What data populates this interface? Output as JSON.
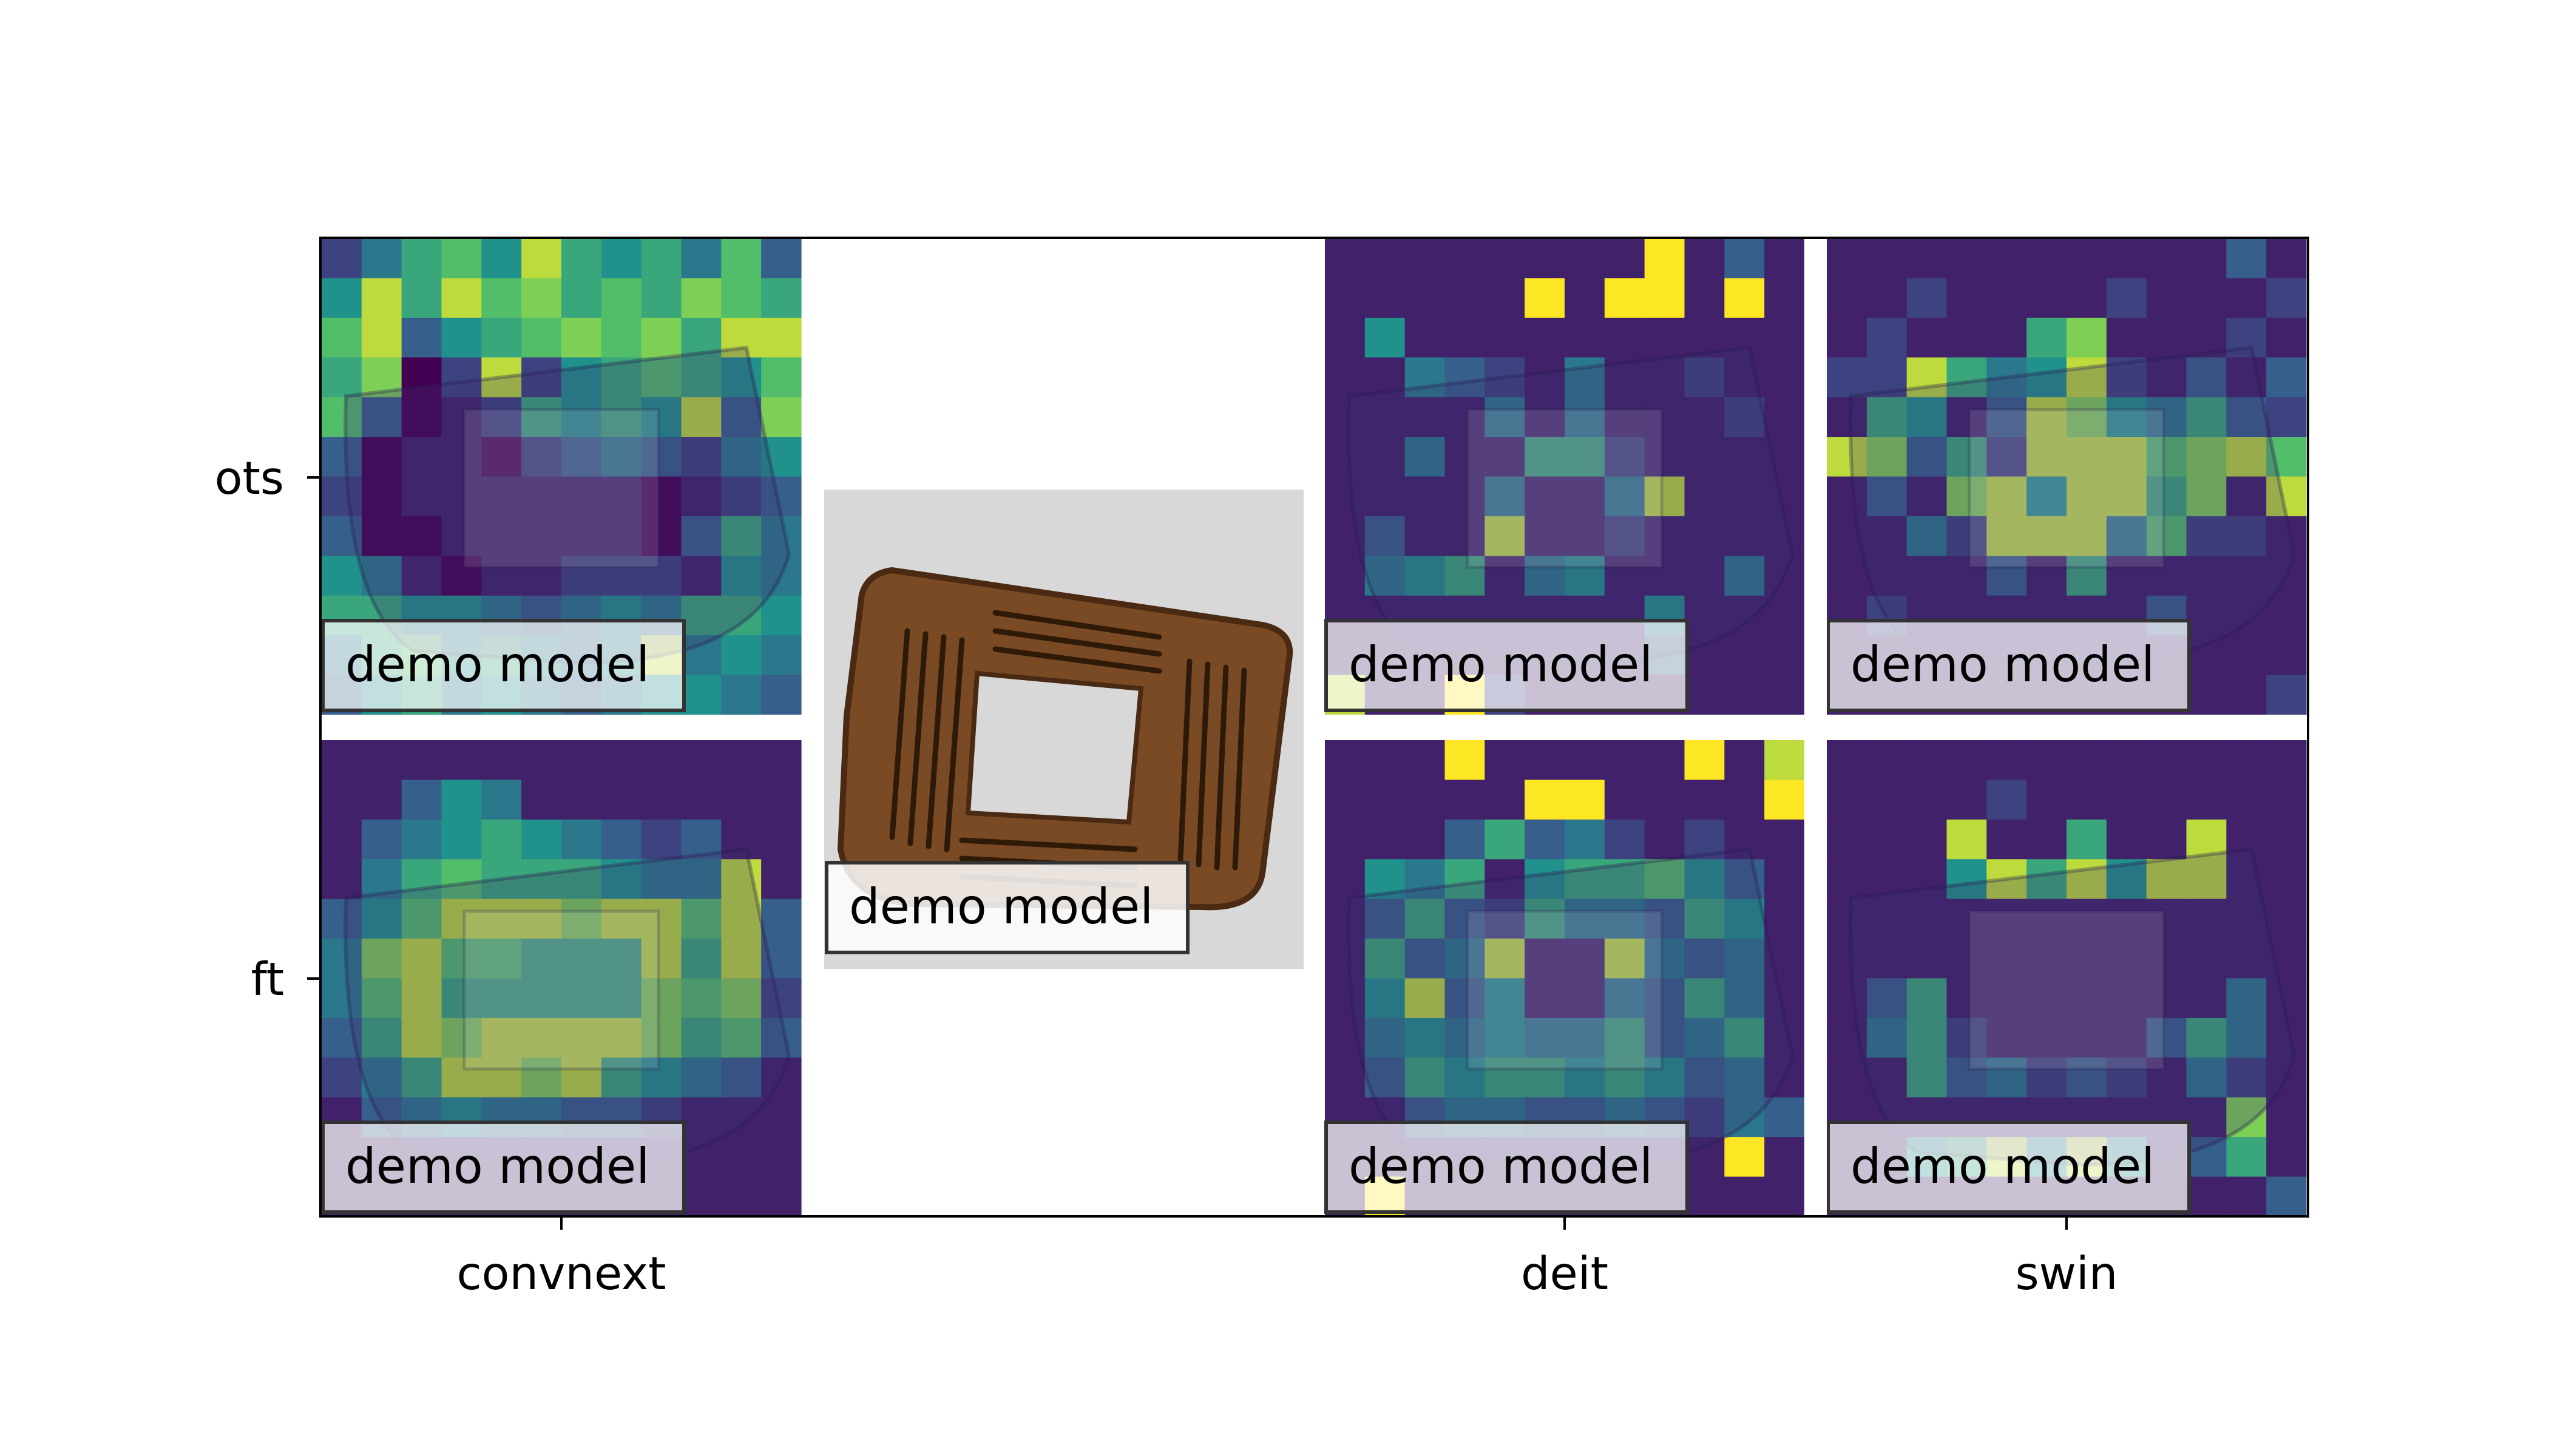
{
  "chart_data": {
    "type": "heatmap",
    "title": "",
    "xlabel": "",
    "ylabel": "",
    "x_tick_labels": [
      "convnext",
      "deit",
      "swin"
    ],
    "y_tick_labels": [
      "ots",
      "ft"
    ],
    "panel_label": "demo model",
    "grid": false,
    "colormap": "viridis",
    "center_image": {
      "label": "demo model",
      "description_colors": {
        "background": "#d8d8d8",
        "frame_wood": "#7a4a24",
        "frame_dark": "#4a2a12"
      }
    },
    "grid_size": [
      12,
      12
    ],
    "panels": [
      {
        "model": "convnext",
        "setting": "ots",
        "label": "demo model",
        "values": [
          [
            0.2,
            0.4,
            0.6,
            0.7,
            0.5,
            0.9,
            0.6,
            0.5,
            0.6,
            0.4,
            0.7,
            0.3
          ],
          [
            0.5,
            0.9,
            0.6,
            0.9,
            0.7,
            0.8,
            0.6,
            0.7,
            0.6,
            0.8,
            0.7,
            0.6
          ],
          [
            0.7,
            0.9,
            0.3,
            0.5,
            0.6,
            0.7,
            0.8,
            0.7,
            0.8,
            0.6,
            0.9,
            0.9
          ],
          [
            0.6,
            0.8,
            0.0,
            0.2,
            0.9,
            0.2,
            0.5,
            0.6,
            0.7,
            0.6,
            0.5,
            0.7
          ],
          [
            0.7,
            0.3,
            0.0,
            0.1,
            0.2,
            0.6,
            0.5,
            0.6,
            0.5,
            0.9,
            0.3,
            0.8
          ],
          [
            0.3,
            0.0,
            0.1,
            0.1,
            0.0,
            0.2,
            0.3,
            0.4,
            0.3,
            0.2,
            0.4,
            0.5
          ],
          [
            0.2,
            0.0,
            0.1,
            0.1,
            0.1,
            0.1,
            0.1,
            0.1,
            0.0,
            0.1,
            0.2,
            0.3
          ],
          [
            0.3,
            0.0,
            0.0,
            0.1,
            0.1,
            0.1,
            0.1,
            0.1,
            0.0,
            0.3,
            0.6,
            0.4
          ],
          [
            0.5,
            0.4,
            0.1,
            0.0,
            0.1,
            0.1,
            0.2,
            0.2,
            0.2,
            0.1,
            0.5,
            0.4
          ],
          [
            0.6,
            0.6,
            0.5,
            0.5,
            0.4,
            0.3,
            0.4,
            0.5,
            0.4,
            0.6,
            0.6,
            0.5
          ],
          [
            0.4,
            0.6,
            0.7,
            0.5,
            0.6,
            0.5,
            0.4,
            0.5,
            0.9,
            0.4,
            0.5,
            0.4
          ],
          [
            0.3,
            0.5,
            0.6,
            0.4,
            0.5,
            0.4,
            0.3,
            0.4,
            0.5,
            0.5,
            0.4,
            0.3
          ]
        ]
      },
      {
        "model": "deit",
        "setting": "ots",
        "label": "demo model",
        "values": [
          [
            0.1,
            0.1,
            0.1,
            0.1,
            0.1,
            0.1,
            0.1,
            0.1,
            1.0,
            0.1,
            0.3,
            0.1
          ],
          [
            0.1,
            0.1,
            0.1,
            0.1,
            0.1,
            1.0,
            0.1,
            1.0,
            1.0,
            0.1,
            1.0,
            0.1
          ],
          [
            0.1,
            0.5,
            0.1,
            0.1,
            0.1,
            0.1,
            0.1,
            0.1,
            0.1,
            0.1,
            0.1,
            0.1
          ],
          [
            0.1,
            0.1,
            0.4,
            0.3,
            0.2,
            0.1,
            0.4,
            0.1,
            0.1,
            0.2,
            0.1,
            0.1
          ],
          [
            0.1,
            0.1,
            0.1,
            0.1,
            0.4,
            0.1,
            0.4,
            0.1,
            0.1,
            0.1,
            0.2,
            0.1
          ],
          [
            0.1,
            0.1,
            0.4,
            0.1,
            0.1,
            0.6,
            0.6,
            0.2,
            0.1,
            0.1,
            0.1,
            0.1
          ],
          [
            0.1,
            0.1,
            0.1,
            0.1,
            0.4,
            0.1,
            0.1,
            0.4,
            0.9,
            0.1,
            0.1,
            0.1
          ],
          [
            0.1,
            0.3,
            0.1,
            0.1,
            0.9,
            0.1,
            0.1,
            0.2,
            0.1,
            0.1,
            0.1,
            0.1
          ],
          [
            0.1,
            0.4,
            0.5,
            0.6,
            0.1,
            0.4,
            0.5,
            0.1,
            0.1,
            0.1,
            0.4,
            0.1
          ],
          [
            0.1,
            0.1,
            0.1,
            0.1,
            0.1,
            0.1,
            0.1,
            0.1,
            0.5,
            0.1,
            0.1,
            0.1
          ],
          [
            0.1,
            0.1,
            0.1,
            0.1,
            0.1,
            0.1,
            0.1,
            0.1,
            0.3,
            0.1,
            0.1,
            0.1
          ],
          [
            0.9,
            0.1,
            0.1,
            1.0,
            0.2,
            0.1,
            0.1,
            0.1,
            0.1,
            0.1,
            0.1,
            0.1
          ]
        ]
      },
      {
        "model": "swin",
        "setting": "ots",
        "label": "demo model",
        "values": [
          [
            0.1,
            0.1,
            0.1,
            0.1,
            0.1,
            0.1,
            0.1,
            0.1,
            0.1,
            0.1,
            0.3,
            0.1
          ],
          [
            0.1,
            0.1,
            0.2,
            0.1,
            0.1,
            0.1,
            0.1,
            0.2,
            0.1,
            0.1,
            0.1,
            0.2
          ],
          [
            0.1,
            0.2,
            0.1,
            0.1,
            0.1,
            0.6,
            0.8,
            0.1,
            0.1,
            0.1,
            0.2,
            0.1
          ],
          [
            0.2,
            0.2,
            0.9,
            0.6,
            0.4,
            0.5,
            0.9,
            0.2,
            0.1,
            0.3,
            0.1,
            0.3
          ],
          [
            0.1,
            0.6,
            0.5,
            0.1,
            0.3,
            0.9,
            0.8,
            0.5,
            0.4,
            0.6,
            0.3,
            0.2
          ],
          [
            0.9,
            0.8,
            0.3,
            0.6,
            0.2,
            0.9,
            0.9,
            0.9,
            0.7,
            0.8,
            0.9,
            0.7
          ],
          [
            0.1,
            0.3,
            0.1,
            0.8,
            0.9,
            0.5,
            0.9,
            0.9,
            0.6,
            0.8,
            0.1,
            0.9
          ],
          [
            0.1,
            0.1,
            0.4,
            0.2,
            0.9,
            0.9,
            0.9,
            0.4,
            0.7,
            0.2,
            0.2,
            0.1
          ],
          [
            0.1,
            0.1,
            0.1,
            0.1,
            0.3,
            0.1,
            0.6,
            0.1,
            0.1,
            0.1,
            0.1,
            0.1
          ],
          [
            0.1,
            0.2,
            0.1,
            0.1,
            0.1,
            0.1,
            0.1,
            0.1,
            0.3,
            0.1,
            0.1,
            0.1
          ],
          [
            0.1,
            0.1,
            0.1,
            0.1,
            0.1,
            0.1,
            0.1,
            0.1,
            0.1,
            0.1,
            0.1,
            0.1
          ],
          [
            0.1,
            0.1,
            0.1,
            0.1,
            0.1,
            0.1,
            0.1,
            0.1,
            0.1,
            0.1,
            0.1,
            0.2
          ]
        ]
      },
      {
        "model": "convnext",
        "setting": "ft",
        "label": "demo model",
        "values": [
          [
            0.1,
            0.1,
            0.1,
            0.1,
            0.1,
            0.1,
            0.1,
            0.1,
            0.1,
            0.1,
            0.1,
            0.1
          ],
          [
            0.1,
            0.1,
            0.3,
            0.5,
            0.4,
            0.1,
            0.1,
            0.1,
            0.1,
            0.1,
            0.1,
            0.1
          ],
          [
            0.1,
            0.3,
            0.4,
            0.5,
            0.6,
            0.5,
            0.4,
            0.3,
            0.2,
            0.3,
            0.1,
            0.1
          ],
          [
            0.1,
            0.4,
            0.6,
            0.7,
            0.6,
            0.6,
            0.6,
            0.5,
            0.4,
            0.4,
            0.9,
            0.1
          ],
          [
            0.3,
            0.5,
            0.7,
            0.9,
            0.9,
            0.9,
            0.8,
            0.9,
            0.9,
            0.7,
            0.9,
            0.3
          ],
          [
            0.4,
            0.8,
            0.9,
            0.7,
            0.7,
            0.6,
            0.6,
            0.6,
            0.9,
            0.6,
            0.9,
            0.3
          ],
          [
            0.4,
            0.7,
            0.9,
            0.6,
            0.6,
            0.6,
            0.6,
            0.6,
            0.8,
            0.7,
            0.8,
            0.2
          ],
          [
            0.3,
            0.6,
            0.9,
            0.8,
            0.9,
            0.9,
            0.9,
            0.9,
            0.8,
            0.6,
            0.7,
            0.3
          ],
          [
            0.2,
            0.4,
            0.6,
            0.9,
            0.9,
            0.8,
            0.9,
            0.6,
            0.5,
            0.4,
            0.3,
            0.1
          ],
          [
            0.1,
            0.3,
            0.4,
            0.5,
            0.4,
            0.4,
            0.3,
            0.3,
            0.2,
            0.1,
            0.1,
            0.1
          ],
          [
            0.1,
            0.1,
            0.1,
            0.1,
            0.1,
            0.1,
            0.1,
            0.1,
            0.1,
            0.1,
            0.1,
            0.1
          ],
          [
            0.1,
            0.1,
            0.1,
            0.1,
            0.1,
            0.1,
            0.1,
            0.1,
            0.1,
            0.1,
            0.1,
            0.1
          ]
        ]
      },
      {
        "model": "deit",
        "setting": "ft",
        "label": "demo model",
        "values": [
          [
            0.1,
            0.1,
            0.1,
            1.0,
            0.1,
            0.1,
            0.1,
            0.1,
            0.1,
            1.0,
            0.1,
            0.9
          ],
          [
            0.1,
            0.1,
            0.1,
            0.1,
            0.1,
            1.0,
            1.0,
            0.1,
            0.1,
            0.1,
            0.1,
            1.0
          ],
          [
            0.1,
            0.1,
            0.1,
            0.3,
            0.6,
            0.3,
            0.4,
            0.2,
            0.1,
            0.2,
            0.1,
            0.1
          ],
          [
            0.1,
            0.5,
            0.4,
            0.6,
            0.1,
            0.5,
            0.6,
            0.6,
            0.7,
            0.5,
            0.3,
            0.1
          ],
          [
            0.1,
            0.3,
            0.6,
            0.3,
            0.2,
            0.6,
            0.4,
            0.4,
            0.3,
            0.6,
            0.5,
            0.1
          ],
          [
            0.1,
            0.6,
            0.3,
            0.4,
            0.9,
            0.1,
            0.1,
            0.9,
            0.4,
            0.3,
            0.4,
            0.1
          ],
          [
            0.1,
            0.5,
            0.9,
            0.3,
            0.5,
            0.1,
            0.1,
            0.4,
            0.3,
            0.6,
            0.4,
            0.1
          ],
          [
            0.1,
            0.4,
            0.5,
            0.4,
            0.5,
            0.4,
            0.4,
            0.6,
            0.3,
            0.4,
            0.6,
            0.1
          ],
          [
            0.1,
            0.3,
            0.6,
            0.5,
            0.6,
            0.6,
            0.5,
            0.6,
            0.5,
            0.3,
            0.4,
            0.1
          ],
          [
            0.1,
            0.1,
            0.3,
            0.4,
            0.4,
            0.3,
            0.3,
            0.4,
            0.3,
            0.2,
            0.4,
            0.3
          ],
          [
            0.1,
            0.1,
            0.1,
            0.1,
            0.1,
            0.1,
            0.1,
            0.1,
            0.1,
            0.1,
            1.0,
            0.1
          ],
          [
            0.1,
            1.0,
            0.1,
            0.1,
            0.1,
            0.1,
            0.1,
            0.1,
            0.1,
            0.1,
            0.1,
            0.1
          ]
        ]
      },
      {
        "model": "swin",
        "setting": "ft",
        "label": "demo model",
        "values": [
          [
            0.1,
            0.1,
            0.1,
            0.1,
            0.1,
            0.1,
            0.1,
            0.1,
            0.1,
            0.1,
            0.1,
            0.1
          ],
          [
            0.1,
            0.1,
            0.1,
            0.1,
            0.2,
            0.1,
            0.1,
            0.1,
            0.1,
            0.1,
            0.1,
            0.1
          ],
          [
            0.1,
            0.1,
            0.1,
            0.9,
            0.1,
            0.1,
            0.6,
            0.1,
            0.1,
            0.9,
            0.1,
            0.1
          ],
          [
            0.1,
            0.1,
            0.1,
            0.5,
            0.9,
            0.6,
            0.9,
            0.5,
            0.9,
            0.9,
            0.1,
            0.1
          ],
          [
            0.1,
            0.1,
            0.1,
            0.1,
            0.1,
            0.1,
            0.1,
            0.1,
            0.1,
            0.1,
            0.1,
            0.1
          ],
          [
            0.1,
            0.1,
            0.1,
            0.1,
            0.1,
            0.1,
            0.1,
            0.1,
            0.1,
            0.1,
            0.1,
            0.1
          ],
          [
            0.1,
            0.3,
            0.6,
            0.1,
            0.1,
            0.1,
            0.1,
            0.1,
            0.1,
            0.1,
            0.4,
            0.1
          ],
          [
            0.1,
            0.4,
            0.6,
            0.2,
            0.1,
            0.1,
            0.1,
            0.1,
            0.3,
            0.6,
            0.4,
            0.1
          ],
          [
            0.1,
            0.1,
            0.6,
            0.3,
            0.4,
            0.2,
            0.3,
            0.2,
            0.1,
            0.4,
            0.2,
            0.1
          ],
          [
            0.1,
            0.1,
            0.1,
            0.1,
            0.1,
            0.1,
            0.1,
            0.1,
            0.1,
            0.1,
            0.8,
            0.1
          ],
          [
            0.1,
            0.1,
            0.5,
            0.6,
            0.9,
            0.5,
            0.9,
            0.5,
            0.1,
            0.3,
            0.6,
            0.1
          ],
          [
            0.1,
            0.1,
            0.1,
            0.1,
            0.1,
            0.1,
            0.1,
            0.1,
            0.1,
            0.1,
            0.1,
            0.3
          ]
        ]
      }
    ]
  }
}
